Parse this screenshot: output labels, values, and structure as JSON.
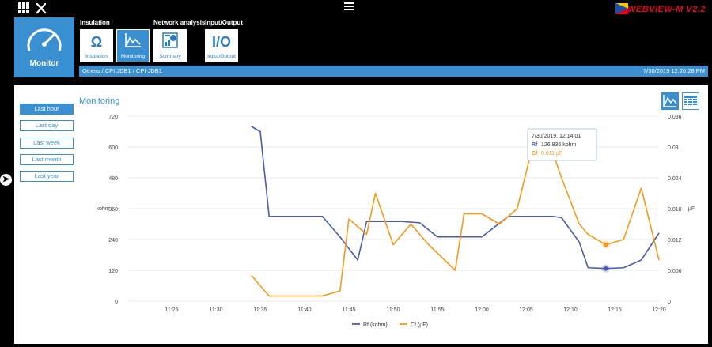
{
  "app": {
    "brand": "WEBVIEW-M  V2.2"
  },
  "nav": {
    "monitor_label": "Monitor",
    "groups": [
      {
        "title": "Insulation"
      },
      {
        "title": "Network analysis"
      },
      {
        "title": "Input/Output"
      }
    ],
    "tabs": [
      {
        "label": "Insulation",
        "glyph": "Ω",
        "icon": "ohm-icon",
        "active": false
      },
      {
        "label": "Monitoring",
        "glyph": "",
        "icon": "monitoring-icon",
        "active": true
      },
      {
        "label": "Summary",
        "glyph": "",
        "icon": "summary-icon",
        "active": false
      },
      {
        "label": "Input/Output",
        "glyph": "I/O",
        "icon": "io-icon",
        "active": false
      }
    ]
  },
  "breadcrumb": {
    "path": "Others / CPI JDB1 / CPI JDB1",
    "timestamp": "7/30/2019  12:20:28 PM"
  },
  "time_ranges": [
    "Last hour",
    "Last day",
    "Last week",
    "Last month",
    "Last year"
  ],
  "panel": {
    "title": "Monitoring"
  },
  "tooltip": {
    "time": "7/30/2019, 12:14:01",
    "rf_label": "Rf",
    "rf_value": "126.836 kohm",
    "cf_label": "Cf",
    "cf_value": "0.011 µF"
  },
  "colors": {
    "accent": "#3a8fd1",
    "rf": "#4a5cab",
    "cf": "#f39a1e"
  },
  "chart_data": {
    "type": "line",
    "x_ticks": [
      "11:25",
      "11:30",
      "11:35",
      "11:40",
      "11:45",
      "11:50",
      "11:55",
      "12:00",
      "12:05",
      "12:10",
      "12:15",
      "12:20"
    ],
    "y_left": {
      "label": "kohm",
      "range": [
        0,
        720
      ],
      "ticks": [
        "0",
        "120",
        "240",
        "360",
        "480",
        "600",
        "720"
      ]
    },
    "y_right": {
      "label": "µF",
      "range": [
        0,
        0.036
      ],
      "ticks": [
        "0",
        "0.006",
        "0.012",
        "0.018",
        "0.024",
        "0.03",
        "0.036"
      ]
    },
    "grid": true,
    "legend_position": "bottom",
    "series": [
      {
        "name": "Rf (kohm)",
        "axis": "left",
        "x": [
          "11:34",
          "11:35",
          "11:36",
          "11:40",
          "11:42",
          "11:44",
          "11:46",
          "11:47",
          "11:50",
          "11:51",
          "11:53",
          "11:55",
          "11:59",
          "12:00",
          "12:03",
          "12:04",
          "12:06",
          "12:08",
          "12:09",
          "12:11",
          "12:12",
          "12:14",
          "12:16",
          "12:18",
          "12:20"
        ],
        "values": [
          680,
          660,
          330,
          330,
          330,
          250,
          160,
          310,
          310,
          310,
          305,
          250,
          250,
          250,
          330,
          330,
          330,
          330,
          325,
          230,
          130,
          127,
          130,
          160,
          265
        ]
      },
      {
        "name": "Cf (µF)",
        "axis": "right",
        "x": [
          "11:34",
          "11:36",
          "11:38",
          "11:40",
          "11:42",
          "11:44",
          "11:45",
          "11:47",
          "11:48",
          "11:50",
          "11:52",
          "11:54",
          "11:57",
          "11:58",
          "12:00",
          "12:02",
          "12:04",
          "12:06",
          "12:08",
          "12:09",
          "12:11",
          "12:12",
          "12:14",
          "12:16",
          "12:18",
          "12:20"
        ],
        "values": [
          0.005,
          0.001,
          0.001,
          0.001,
          0.001,
          0.002,
          0.016,
          0.013,
          0.021,
          0.011,
          0.015,
          0.011,
          0.006,
          0.017,
          0.017,
          0.015,
          0.018,
          0.032,
          0.029,
          0.024,
          0.015,
          0.013,
          0.011,
          0.012,
          0.022,
          0.008
        ]
      }
    ],
    "highlight_x": "12:14",
    "highlight": {
      "rf": 126.836,
      "cf": 0.011
    }
  }
}
